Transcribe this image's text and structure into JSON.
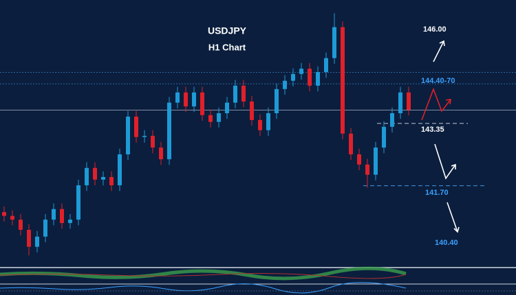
{
  "chart_data": {
    "type": "candlestick",
    "title": "USDJPY",
    "subtitle": "H1 Chart",
    "up_color": "#1e9bd7",
    "down_color": "#e0202a",
    "ylim": [
      139.53,
      146.62
    ],
    "open": [
      141.0,
      140.9,
      140.8,
      140.53,
      140.08,
      140.35,
      140.8,
      141.08,
      140.71,
      140.8,
      141.71,
      142.17,
      141.86,
      141.93,
      141.71,
      142.53,
      143.53,
      142.99,
      143.02,
      142.71,
      142.4,
      143.9,
      144.17,
      143.8,
      144.17,
      143.57,
      143.39,
      143.62,
      143.9,
      144.35,
      143.93,
      143.44,
      143.17,
      143.62,
      144.26,
      144.48,
      144.66,
      144.8,
      144.35,
      144.71,
      145.08,
      145.9,
      143.08,
      142.53,
      142.26,
      141.99,
      142.71,
      143.26,
      143.62,
      144.17
    ],
    "high": [
      141.15,
      141.05,
      140.95,
      140.68,
      140.5,
      140.95,
      141.23,
      141.23,
      140.95,
      141.86,
      142.32,
      142.32,
      142.08,
      142.08,
      142.68,
      143.68,
      143.68,
      143.17,
      143.17,
      142.86,
      144.05,
      144.32,
      144.32,
      144.32,
      144.32,
      143.72,
      143.77,
      144.05,
      144.5,
      144.5,
      144.08,
      143.59,
      143.77,
      144.41,
      144.63,
      144.81,
      144.95,
      144.95,
      144.86,
      145.23,
      146.27,
      146.05,
      143.23,
      142.68,
      142.41,
      142.86,
      143.41,
      143.77,
      144.32,
      144.32
    ],
    "low": [
      140.75,
      140.65,
      140.38,
      139.85,
      139.93,
      140.2,
      140.65,
      140.56,
      140.56,
      140.65,
      141.56,
      141.71,
      141.71,
      141.56,
      141.56,
      142.38,
      142.84,
      142.84,
      142.56,
      142.25,
      142.25,
      143.75,
      143.65,
      143.65,
      143.42,
      143.24,
      143.24,
      143.47,
      143.75,
      143.78,
      143.29,
      143.02,
      143.02,
      143.47,
      144.11,
      144.33,
      144.51,
      144.2,
      144.2,
      144.56,
      144.93,
      142.93,
      142.38,
      142.11,
      141.65,
      141.84,
      142.56,
      143.11,
      143.47,
      143.56
    ],
    "close": [
      140.9,
      140.8,
      140.53,
      140.08,
      140.35,
      140.8,
      141.08,
      140.71,
      140.8,
      141.71,
      142.17,
      141.86,
      141.93,
      141.71,
      142.53,
      143.53,
      142.99,
      143.02,
      142.71,
      142.4,
      143.9,
      144.17,
      143.8,
      144.17,
      143.57,
      143.39,
      143.62,
      143.9,
      144.35,
      143.93,
      143.44,
      143.17,
      143.62,
      144.26,
      144.48,
      144.66,
      144.8,
      144.35,
      144.71,
      145.08,
      145.9,
      143.08,
      142.53,
      142.26,
      141.99,
      142.71,
      143.26,
      143.62,
      144.17,
      143.71
    ],
    "resistance_lines": [
      144.7,
      144.4
    ],
    "support_lines": [
      143.35,
      141.7
    ],
    "current_price": 143.7,
    "price_labels": [
      "146.00",
      "144.40-70",
      "143.35",
      "141.70",
      "140.40"
    ]
  }
}
